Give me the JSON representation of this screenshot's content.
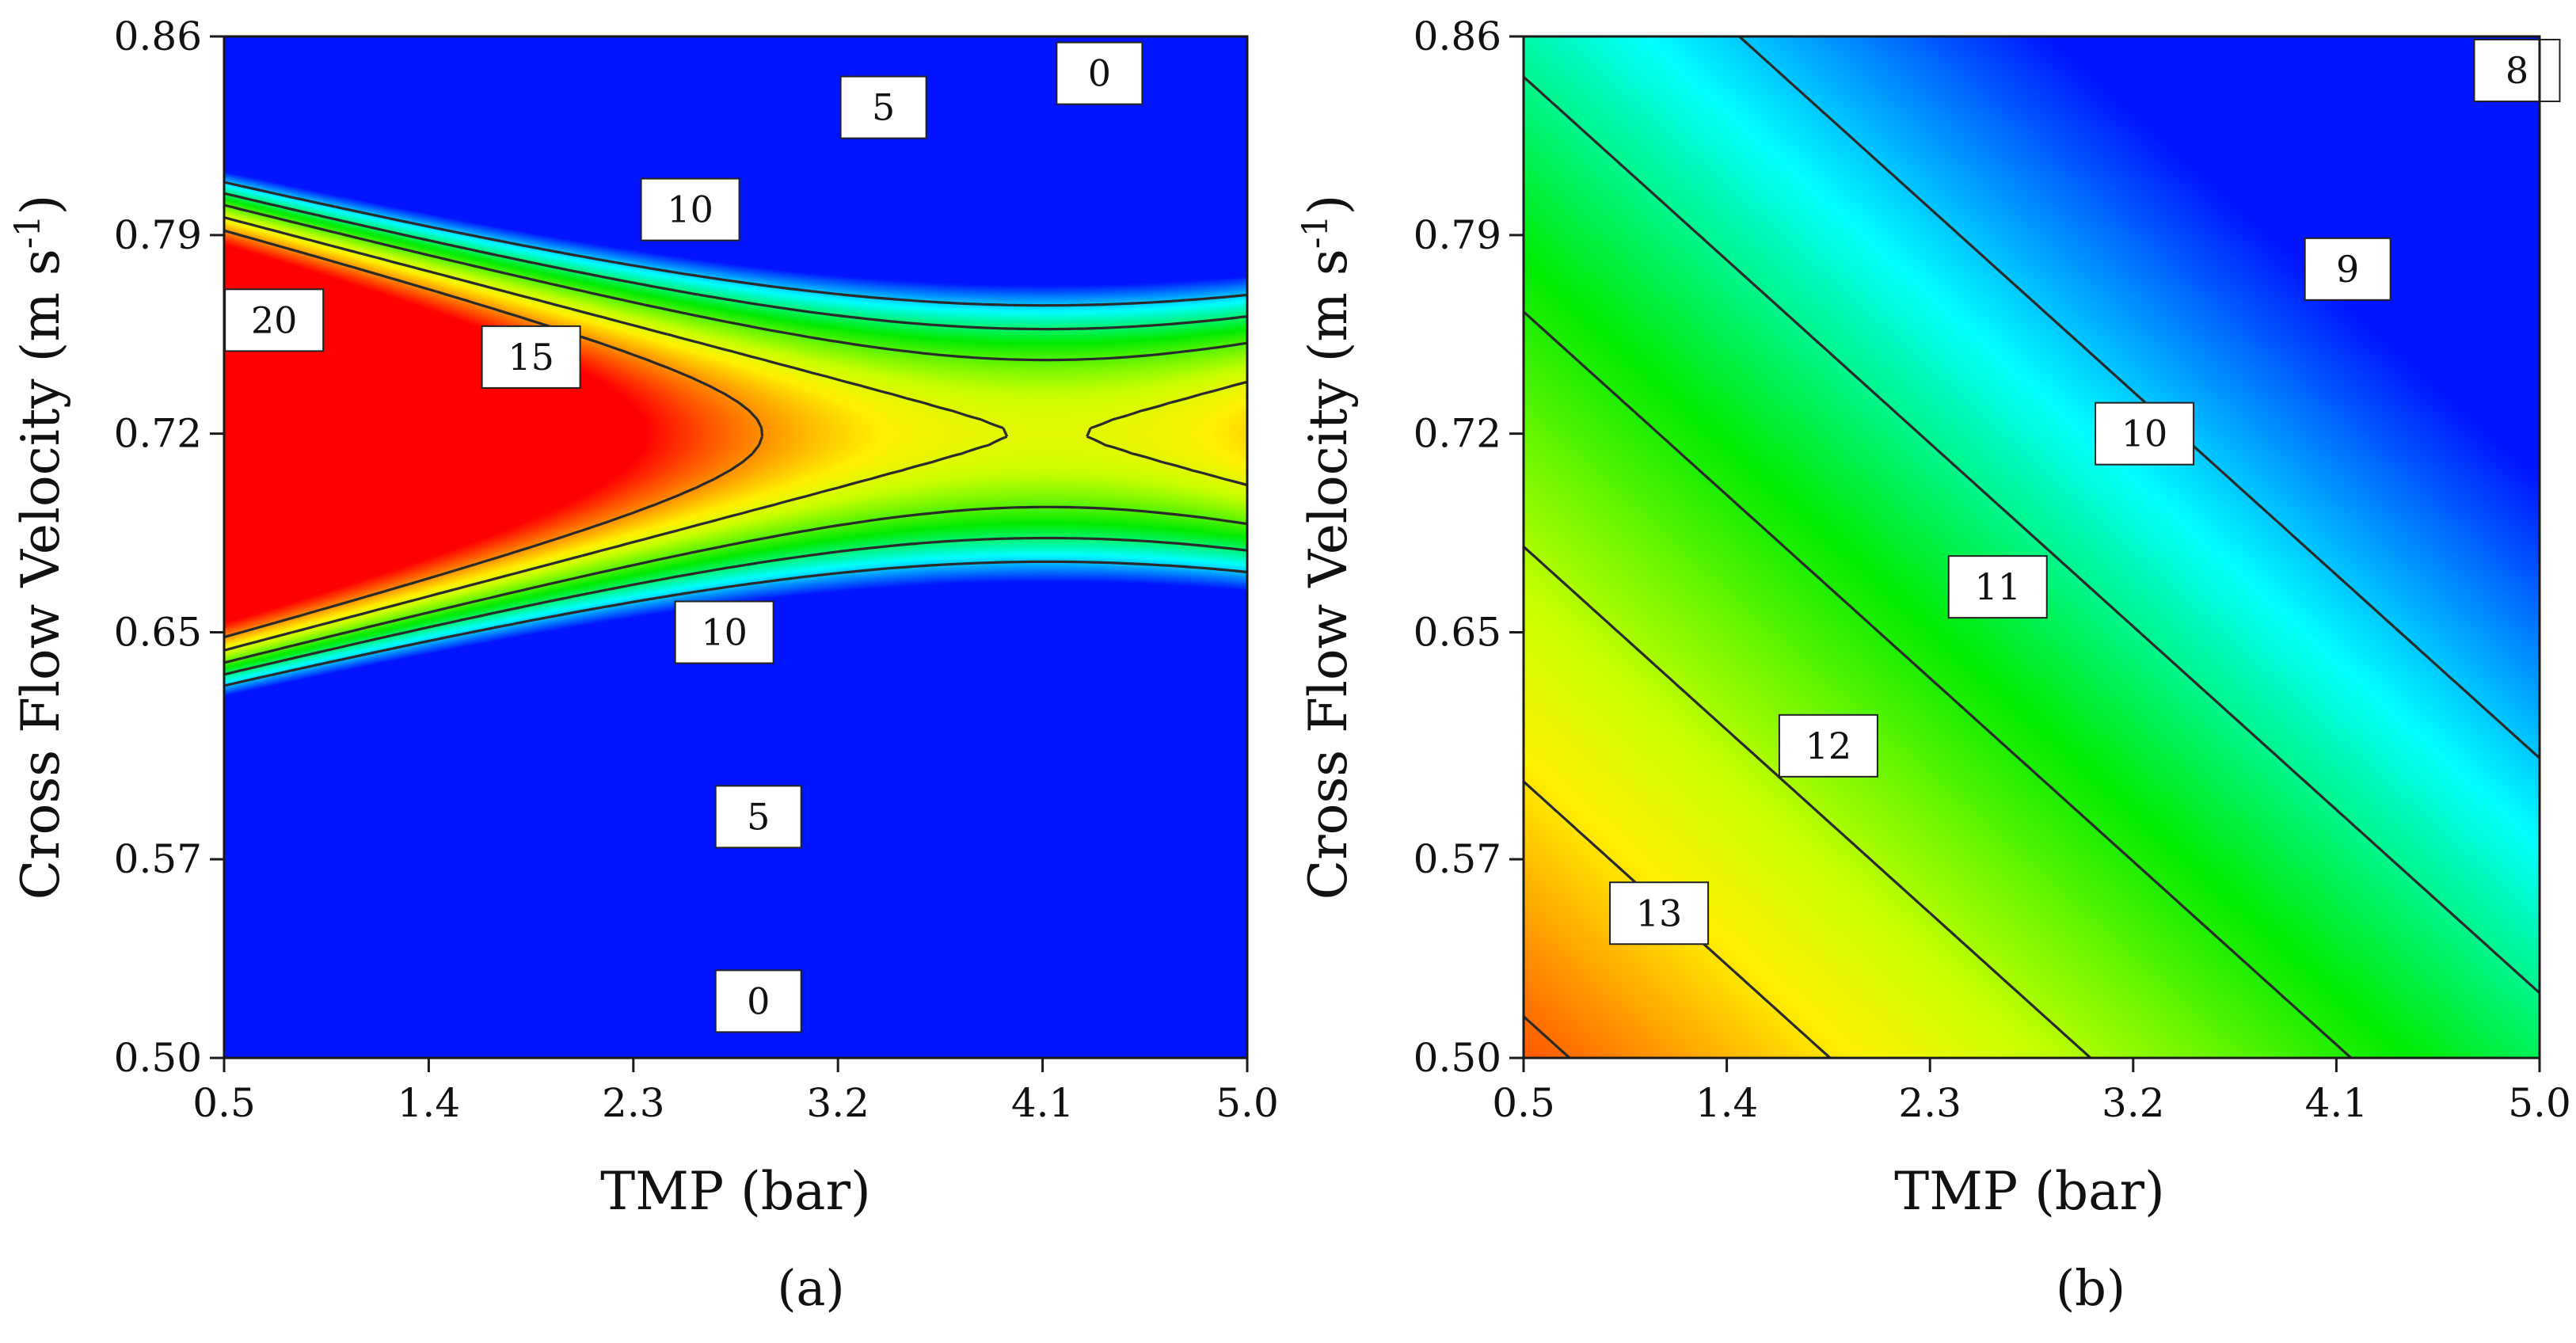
{
  "chart_data": [
    {
      "type": "heatmap",
      "panel_label": "(a)",
      "xlabel": "TMP (bar)",
      "ylabel_main": "Cross Flow Velocity (m s",
      "ylabel_sup": "-1",
      "ylabel_close": ")",
      "xlim": [
        0.5,
        5.0
      ],
      "ylim": [
        0.5,
        0.86
      ],
      "xticks": [
        "0.5",
        "1.4",
        "2.3",
        "3.2",
        "4.1",
        "5.0"
      ],
      "yticks": [
        "0.50",
        "0.57",
        "0.65",
        "0.72",
        "0.79",
        "0.86"
      ],
      "value_range": [
        -5,
        25
      ],
      "model": "quadratic",
      "coefficients": {
        "c": 21.0,
        "x": -8.9,
        "y": 0.0,
        "xy": 0.5,
        "x2": 3.25,
        "y2": -73.0
      },
      "contours": [
        {
          "label": "0",
          "x": 2.85,
          "y": 0.52
        },
        {
          "label": "5",
          "x": 2.85,
          "y": 0.585
        },
        {
          "label": "10",
          "x": 2.7,
          "y": 0.65
        },
        {
          "label": "15",
          "x": 1.85,
          "y": 0.747
        },
        {
          "label": "20",
          "x": 0.72,
          "y": 0.76
        },
        {
          "label": "10",
          "x": 2.55,
          "y": 0.799
        },
        {
          "label": "5",
          "x": 3.4,
          "y": 0.835
        },
        {
          "label": "0",
          "x": 4.35,
          "y": 0.847
        }
      ]
    },
    {
      "type": "heatmap",
      "panel_label": "(b)",
      "xlabel": "TMP (bar)",
      "ylabel_main": "Cross Flow Velocity (m s",
      "ylabel_sup": "-1",
      "ylabel_close": ")",
      "xlim": [
        0.5,
        5.0
      ],
      "ylim": [
        0.5,
        0.86
      ],
      "xticks": [
        "0.5",
        "1.4",
        "2.3",
        "3.2",
        "4.1",
        "5.0"
      ],
      "yticks": [
        "0.50",
        "0.57",
        "0.65",
        "0.72",
        "0.79",
        "0.86"
      ],
      "value_range": [
        6.8,
        13.9
      ],
      "model": "linear",
      "coefficients": {
        "c": 19.65,
        "x": -0.8667,
        "y": -12.08
      },
      "contours": [
        {
          "label": "13",
          "x": 1.1,
          "y": 0.551
        },
        {
          "label": "12",
          "x": 1.85,
          "y": 0.61
        },
        {
          "label": "11",
          "x": 2.6,
          "y": 0.666
        },
        {
          "label": "10",
          "x": 3.25,
          "y": 0.72
        },
        {
          "label": "9",
          "x": 4.15,
          "y": 0.778
        },
        {
          "label": "8",
          "x": 4.9,
          "y": 0.848
        }
      ]
    }
  ]
}
